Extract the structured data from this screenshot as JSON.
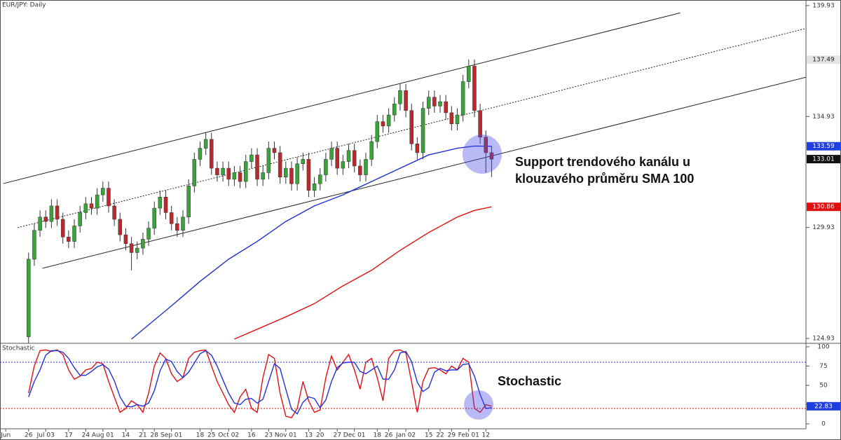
{
  "chart_data": [
    {
      "type": "candlestick",
      "title": "EUR/JPY: Daily",
      "xlim": [
        -5,
        136
      ],
      "ylim": [
        124.71,
        140.18
      ],
      "yticks": [
        124.93,
        129.93,
        134.93,
        139.93
      ],
      "up_color": "#3aa33a",
      "down_color": "#c0272d",
      "open": [
        125.0,
        128.5,
        129.8,
        130.4,
        130.2,
        130.9,
        130.3,
        129.5,
        129.3,
        130.0,
        130.6,
        131.0,
        130.8,
        131.4,
        131.7,
        130.9,
        130.3,
        129.6,
        129.2,
        128.8,
        129.0,
        129.4,
        129.9,
        130.8,
        131.3,
        130.6,
        130.1,
        129.8,
        130.4,
        131.8,
        133.0,
        133.5,
        133.9,
        132.6,
        132.3,
        132.6,
        132.1,
        132.4,
        132.0,
        132.9,
        133.2,
        132.1,
        132.4,
        133.5,
        133.3,
        132.2,
        132.6,
        131.9,
        132.8,
        133.0,
        131.6,
        131.9,
        132.3,
        133.0,
        133.5,
        132.6,
        132.9,
        133.4,
        132.7,
        132.3,
        133.0,
        133.8,
        134.7,
        134.5,
        135.0,
        135.5,
        136.1,
        135.2,
        133.7,
        133.3,
        135.3,
        135.8,
        135.4,
        135.6,
        135.1,
        134.6,
        135.0,
        136.5,
        137.2,
        135.2,
        134.0,
        133.3
      ],
      "high": [
        128.8,
        130.1,
        130.7,
        130.7,
        131.2,
        131.2,
        130.6,
        129.8,
        130.3,
        130.9,
        131.3,
        131.3,
        131.7,
        132.0,
        132.0,
        131.2,
        130.6,
        129.9,
        129.5,
        129.3,
        129.7,
        130.2,
        131.1,
        131.6,
        131.6,
        130.9,
        130.4,
        130.7,
        132.1,
        133.3,
        133.8,
        134.2,
        134.2,
        132.9,
        132.9,
        132.9,
        132.7,
        132.7,
        133.2,
        133.5,
        133.5,
        132.7,
        133.8,
        133.8,
        133.6,
        132.9,
        132.9,
        133.1,
        133.3,
        133.3,
        132.2,
        132.6,
        133.3,
        133.8,
        133.8,
        133.2,
        133.7,
        133.7,
        133.0,
        133.3,
        134.1,
        135.0,
        135.0,
        135.3,
        135.8,
        136.4,
        136.4,
        135.5,
        134.0,
        135.6,
        136.1,
        136.1,
        135.9,
        135.9,
        135.4,
        135.3,
        136.8,
        137.5,
        137.5,
        135.5,
        134.3,
        133.6
      ],
      "low": [
        124.7,
        128.2,
        129.5,
        129.9,
        129.9,
        130.0,
        129.2,
        129.0,
        129.0,
        129.7,
        130.3,
        130.5,
        130.5,
        131.1,
        130.6,
        130.0,
        129.3,
        128.9,
        128.0,
        128.5,
        128.7,
        129.1,
        129.6,
        130.5,
        130.3,
        129.8,
        129.5,
        129.5,
        130.1,
        131.5,
        132.7,
        133.2,
        132.3,
        132.0,
        132.0,
        131.8,
        131.8,
        131.7,
        131.7,
        132.6,
        131.8,
        131.8,
        132.1,
        133.0,
        131.9,
        131.9,
        131.6,
        131.6,
        132.5,
        131.3,
        131.3,
        131.6,
        132.0,
        132.7,
        132.3,
        132.3,
        132.6,
        132.4,
        132.0,
        132.0,
        132.7,
        133.5,
        134.2,
        134.2,
        134.7,
        135.2,
        134.9,
        133.4,
        133.0,
        133.0,
        135.0,
        135.1,
        135.1,
        134.8,
        134.3,
        134.3,
        134.7,
        136.2,
        134.9,
        133.7,
        132.4,
        132.2
      ],
      "close": [
        128.5,
        129.8,
        130.4,
        130.2,
        130.9,
        130.3,
        129.5,
        129.3,
        130.0,
        130.6,
        131.0,
        130.8,
        131.4,
        131.7,
        130.9,
        130.3,
        129.6,
        129.2,
        128.8,
        129.0,
        129.4,
        129.9,
        130.8,
        131.3,
        130.6,
        130.1,
        129.8,
        130.4,
        131.8,
        133.0,
        133.5,
        133.9,
        132.6,
        132.3,
        132.6,
        132.1,
        132.4,
        132.0,
        132.9,
        133.2,
        132.1,
        132.4,
        133.5,
        133.3,
        132.2,
        132.6,
        131.9,
        132.8,
        133.0,
        131.6,
        131.9,
        132.3,
        133.0,
        133.5,
        132.6,
        132.9,
        133.4,
        132.7,
        132.3,
        133.0,
        133.8,
        134.7,
        134.5,
        135.0,
        135.5,
        136.1,
        135.2,
        133.7,
        133.3,
        135.3,
        135.8,
        135.4,
        135.6,
        135.1,
        134.6,
        135.0,
        136.5,
        137.2,
        135.2,
        134.0,
        133.3,
        133.01
      ],
      "lines": [
        {
          "color": "#1f2fd0",
          "x": [
            18,
            25,
            30,
            35,
            40,
            45,
            50,
            55,
            60,
            65,
            70,
            75,
            78,
            81
          ],
          "values": [
            124.9,
            126.4,
            127.5,
            128.5,
            129.3,
            130.2,
            130.9,
            131.4,
            132.0,
            132.6,
            133.2,
            133.5,
            133.6,
            133.59
          ]
        },
        {
          "color": "#e01010",
          "x": [
            36,
            45,
            50,
            55,
            60,
            65,
            70,
            75,
            78,
            81
          ],
          "values": [
            124.9,
            125.9,
            126.5,
            127.3,
            128.0,
            128.9,
            129.7,
            130.4,
            130.7,
            130.86
          ]
        }
      ],
      "trendlines": [
        {
          "x": [
            -4.4,
            114
          ],
          "values": [
            131.91,
            139.6
          ],
          "dashed": false
        },
        {
          "x": [
            -1.9,
            136
          ],
          "values": [
            129.92,
            138.9
          ],
          "dashed": true
        },
        {
          "x": [
            2.4,
            136
          ],
          "values": [
            128.09,
            136.7
          ],
          "dashed": false
        }
      ],
      "price_labels": [
        {
          "value": 137.49,
          "color": "#e4e4e4",
          "text_color": "#222222"
        },
        {
          "value": 133.59,
          "color": "#1f3fe0",
          "text_color": "#ffffff"
        },
        {
          "value": 133.01,
          "color": "#111111",
          "text_color": "#ffffff"
        },
        {
          "value": 130.86,
          "color": "#e01010",
          "text_color": "#ffffff"
        }
      ],
      "annotation_lines": [
        "Support trendového kanálu u",
        "klouzavého průměru SMA 100"
      ]
    },
    {
      "type": "line",
      "title": "Stochastic",
      "xlim": [
        -5,
        136
      ],
      "ylim": [
        -6.4,
        104.5
      ],
      "yticks": [
        0,
        25,
        50,
        75,
        100
      ],
      "xticks": [
        {
          "value": -4,
          "label": "Jun"
        },
        {
          "value": 0,
          "label": "26"
        },
        {
          "value": 3,
          "label": "Jul 03"
        },
        {
          "value": 7,
          "label": "17"
        },
        {
          "value": 10,
          "label": "24"
        },
        {
          "value": 13,
          "label": "Aug 01"
        },
        {
          "value": 17,
          "label": "14"
        },
        {
          "value": 20,
          "label": "21"
        },
        {
          "value": 22,
          "label": "28"
        },
        {
          "value": 25,
          "label": "Sep 01"
        },
        {
          "value": 30,
          "label": "18"
        },
        {
          "value": 32,
          "label": "25"
        },
        {
          "value": 35,
          "label": "Oct 02"
        },
        {
          "value": 39,
          "label": "16"
        },
        {
          "value": 42,
          "label": "23"
        },
        {
          "value": 45,
          "label": "Nov 01"
        },
        {
          "value": 49,
          "label": "13"
        },
        {
          "value": 51,
          "label": "20"
        },
        {
          "value": 54,
          "label": "27"
        },
        {
          "value": 57,
          "label": "Dec 01"
        },
        {
          "value": 61,
          "label": "18"
        },
        {
          "value": 63,
          "label": "26"
        },
        {
          "value": 66,
          "label": "Jan 02"
        },
        {
          "value": 70,
          "label": "15"
        },
        {
          "value": 72,
          "label": "22"
        },
        {
          "value": 74,
          "label": "29"
        },
        {
          "value": 77,
          "label": "Feb 01"
        },
        {
          "value": 80,
          "label": "12"
        }
      ],
      "series": [
        {
          "color": "#e01010",
          "values": [
            40,
            75,
            95,
            96,
            94,
            96,
            90,
            70,
            58,
            62,
            70,
            72,
            80,
            78,
            55,
            35,
            15,
            20,
            30,
            25,
            15,
            40,
            75,
            92,
            85,
            65,
            55,
            60,
            85,
            93,
            95,
            96,
            75,
            55,
            40,
            25,
            15,
            35,
            45,
            20,
            15,
            60,
            90,
            85,
            40,
            10,
            8,
            20,
            55,
            30,
            15,
            18,
            60,
            88,
            70,
            80,
            90,
            70,
            45,
            80,
            85,
            60,
            30,
            85,
            95,
            96,
            92,
            55,
            15,
            55,
            72,
            73,
            70,
            65,
            75,
            70,
            85,
            80,
            20,
            15,
            25,
            22.83
          ]
        },
        {
          "color": "#2030e0",
          "values": [
            35,
            55,
            70,
            89,
            95,
            95,
            93,
            85,
            73,
            63,
            63,
            68,
            74,
            77,
            71,
            56,
            35,
            23,
            22,
            25,
            23,
            27,
            43,
            69,
            84,
            81,
            68,
            60,
            67,
            79,
            91,
            95,
            89,
            75,
            57,
            40,
            27,
            25,
            32,
            33,
            27,
            32,
            55,
            78,
            72,
            45,
            19,
            13,
            28,
            35,
            33,
            21,
            31,
            55,
            73,
            79,
            80,
            80,
            68,
            65,
            70,
            75,
            58,
            58,
            70,
            92,
            94,
            81,
            54,
            42,
            47,
            67,
            72,
            69,
            70,
            70,
            77,
            78,
            62,
            38,
            20,
            21
          ]
        }
      ],
      "levels": [
        {
          "value": 80,
          "color": "#2030e0"
        },
        {
          "value": 20,
          "color": "#e01010"
        }
      ],
      "current_label": {
        "value": 22.83,
        "color": "#1f3fe0",
        "text_color": "#ffffff"
      }
    }
  ]
}
